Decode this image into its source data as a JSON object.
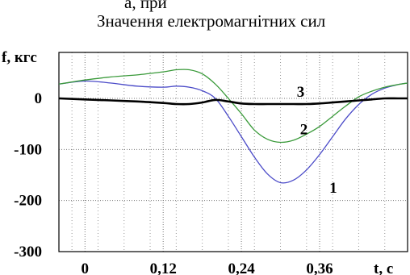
{
  "caption_fragment": "а, при",
  "chart_data": {
    "type": "line",
    "title": "Значення електромагнітних сил",
    "ylabel": "f, кгс",
    "xlabel": "t, с",
    "xlim": [
      -0.04,
      0.495
    ],
    "ylim": [
      -300,
      90
    ],
    "x_ticks": [
      0,
      0.12,
      0.24,
      0.36
    ],
    "x_tick_labels": [
      "0",
      "0,12",
      "0,24",
      "0,36"
    ],
    "y_ticks": [
      0,
      -100,
      -200,
      -300
    ],
    "y_tick_labels": [
      "0",
      "-100",
      "-200",
      "-300"
    ],
    "grid": true,
    "grid_style": "dotted",
    "x": [
      -0.04,
      0.0,
      0.04,
      0.08,
      0.12,
      0.14,
      0.16,
      0.18,
      0.2,
      0.22,
      0.24,
      0.26,
      0.28,
      0.3,
      0.32,
      0.34,
      0.36,
      0.38,
      0.4,
      0.42,
      0.44,
      0.46,
      0.48,
      0.495
    ],
    "series": [
      {
        "label": "1",
        "color": "#4b4bc8",
        "values": [
          28,
          34,
          30,
          24,
          22,
          24,
          22,
          15,
          0,
          -35,
          -75,
          -115,
          -148,
          -165,
          -160,
          -140,
          -110,
          -75,
          -40,
          -12,
          8,
          20,
          27,
          30
        ]
      },
      {
        "label": "2",
        "color": "#3a9a3a",
        "values": [
          28,
          36,
          42,
          46,
          52,
          56,
          56,
          48,
          28,
          0,
          -30,
          -62,
          -80,
          -86,
          -82,
          -70,
          -55,
          -35,
          -15,
          3,
          14,
          22,
          27,
          30
        ]
      },
      {
        "label": "3",
        "color": "#000000",
        "values": [
          0,
          -2,
          -4,
          -6,
          -9,
          -11,
          -11,
          -8,
          -3,
          -6,
          -10,
          -11,
          -11,
          -11,
          -11,
          -11,
          -10,
          -8,
          -6,
          -4,
          -2,
          0,
          0,
          0
        ]
      }
    ]
  }
}
